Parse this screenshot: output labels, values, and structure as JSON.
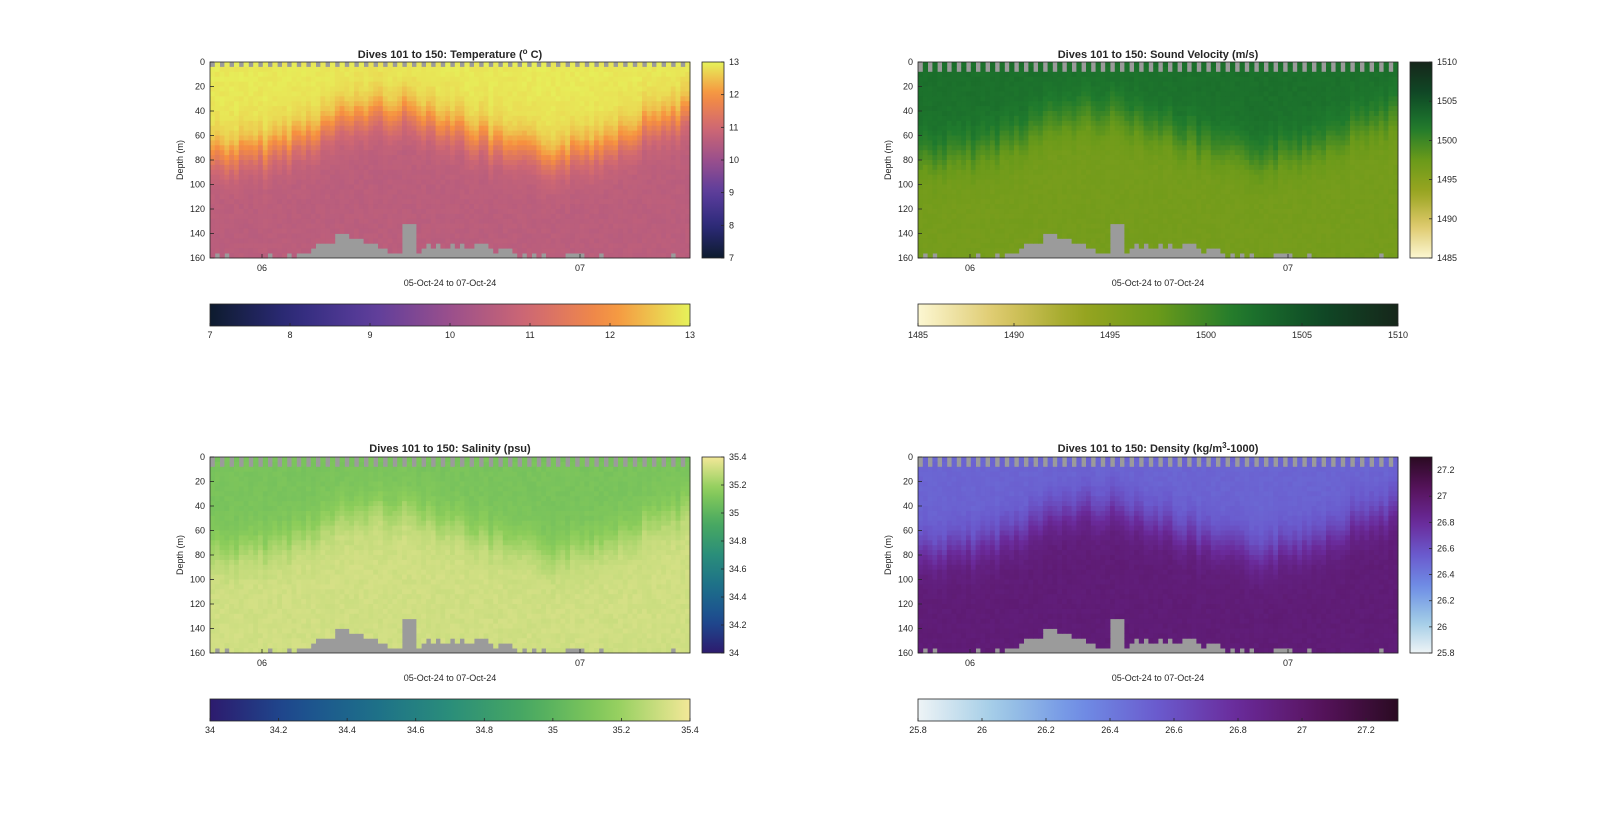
{
  "chart_data": [
    {
      "type": "heatmap",
      "title_prefix": "Dives 101 to 150: Temperature (",
      "title_sup": "o",
      "title_suffix": " C)",
      "xlabel": "05-Oct-24 to 07-Oct-24",
      "ylabel": "Depth (m)",
      "x_ticks": [
        "06",
        "07"
      ],
      "y_ticks": [
        "0",
        "20",
        "40",
        "60",
        "80",
        "100",
        "120",
        "140",
        "160"
      ],
      "ylim": [
        0,
        160
      ],
      "clim": [
        7,
        13
      ],
      "colorbar_ticks": [
        "7",
        "8",
        "9",
        "10",
        "11",
        "12",
        "13"
      ],
      "colormap": [
        "#0d1b2e",
        "#2d2a7a",
        "#5b3d9c",
        "#9a4f8c",
        "#d06872",
        "#f7903f",
        "#e6f25a"
      ],
      "top_gap_max_depth_m": 4,
      "upper_layer_value": 12.9,
      "deep_value": 10.6,
      "thermocline_depth_m_min": 35,
      "thermocline_depth_m_max": 85
    },
    {
      "type": "heatmap",
      "title_prefix": "Dives 101 to 150: Sound Velocity (m/s)",
      "title_sup": "",
      "title_suffix": "",
      "xlabel": "05-Oct-24 to 07-Oct-24",
      "ylabel": "Depth (m)",
      "x_ticks": [
        "06",
        "07"
      ],
      "y_ticks": [
        "0",
        "20",
        "40",
        "60",
        "80",
        "100",
        "120",
        "140",
        "160"
      ],
      "ylim": [
        0,
        160
      ],
      "clim": [
        1485,
        1510
      ],
      "colorbar_ticks": [
        "1485",
        "1490",
        "1495",
        "1500",
        "1505",
        "1510"
      ],
      "colormap": [
        "#fcf7d2",
        "#ddc86a",
        "#9aa521",
        "#6a9a1a",
        "#1f7a2d",
        "#0f4a26",
        "#16261a"
      ],
      "top_gap_max_depth_m": 10,
      "upper_layer_value": 1502.5,
      "deep_value": 1496.5,
      "thermocline_depth_m_min": 35,
      "thermocline_depth_m_max": 85
    },
    {
      "type": "heatmap",
      "title_prefix": "Dives 101 to 150: Salinity (psu)",
      "title_sup": "",
      "title_suffix": "",
      "xlabel": "05-Oct-24 to 07-Oct-24",
      "ylabel": "Depth (m)",
      "x_ticks": [
        "06",
        "07"
      ],
      "y_ticks": [
        "0",
        "20",
        "40",
        "60",
        "80",
        "100",
        "120",
        "140",
        "160"
      ],
      "ylim": [
        0,
        160
      ],
      "clim": [
        34,
        35.4
      ],
      "colorbar_ticks": [
        "34",
        "34.2",
        "34.4",
        "34.6",
        "34.8",
        "35",
        "35.2",
        "35.4"
      ],
      "colormap": [
        "#2d1b6e",
        "#1d4b8f",
        "#1d6e8a",
        "#2a8e7a",
        "#4aaa60",
        "#8ccd5a",
        "#f3e898"
      ],
      "top_gap_max_depth_m": 10,
      "upper_layer_value": 35.1,
      "deep_value": 35.32,
      "thermocline_depth_m_min": 35,
      "thermocline_depth_m_max": 85
    },
    {
      "type": "heatmap",
      "title_prefix": "Dives 101 to 150: Density (kg/m",
      "title_sup": "3",
      "title_suffix": "-1000)",
      "xlabel": "05-Oct-24 to 07-Oct-24",
      "ylabel": "Depth (m)",
      "x_ticks": [
        "06",
        "07"
      ],
      "y_ticks": [
        "0",
        "20",
        "40",
        "60",
        "80",
        "100",
        "120",
        "140",
        "160"
      ],
      "ylim": [
        0,
        160
      ],
      "clim": [
        25.8,
        27.3
      ],
      "colorbar_ticks": [
        "25.8",
        "26",
        "26.2",
        "26.4",
        "26.6",
        "26.8",
        "27",
        "27.2"
      ],
      "colormap": [
        "#eef4f6",
        "#9ecae6",
        "#6f8fe6",
        "#6a5acd",
        "#6a2a9a",
        "#58135e",
        "#2a0a22"
      ],
      "top_gap_max_depth_m": 10,
      "upper_layer_value": 26.5,
      "deep_value": 26.95,
      "thermocline_depth_m_min": 35,
      "thermocline_depth_m_max": 85
    }
  ],
  "colors": {
    "no_data": "#9b9b9b",
    "axis": "#262626"
  }
}
